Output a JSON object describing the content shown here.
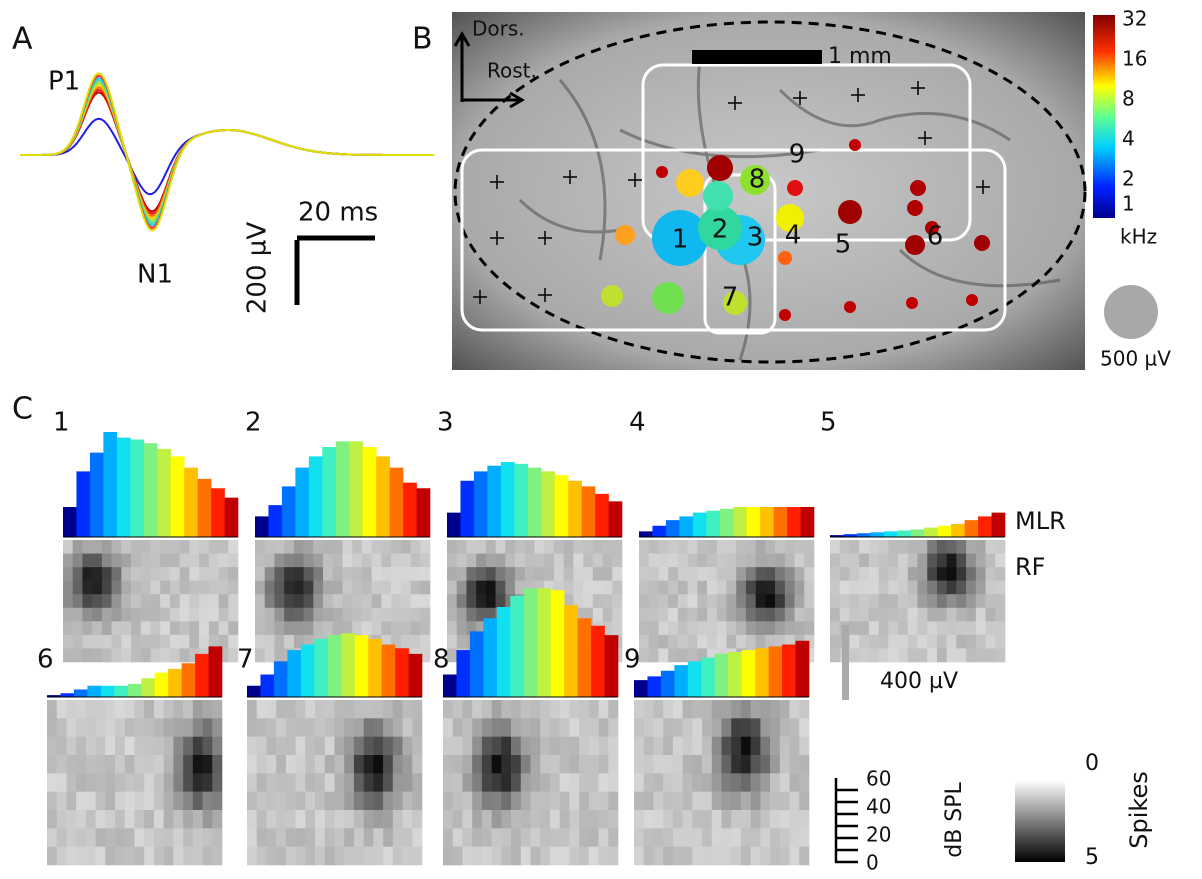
{
  "panel_a": {
    "label": "A",
    "peaks": [
      "P1",
      "N1"
    ],
    "time_scale": "20 ms",
    "voltage_scale": "200 µV"
  },
  "panel_b": {
    "label": "B",
    "orientation": [
      "Dors.",
      "Rost."
    ],
    "distance_scale": "1 mm",
    "colorbar_ticks": [
      "32",
      "16",
      "8",
      "4",
      "2",
      "1"
    ],
    "colorbar_unit": "kHz",
    "size_scale": "500 µV",
    "sites": [
      "1",
      "2",
      "3",
      "4",
      "5",
      "6",
      "7",
      "8",
      "9"
    ]
  },
  "panel_c": {
    "label": "C",
    "row_labels": [
      "MLR",
      "RF"
    ],
    "mlr_scale": "400 µV",
    "level_ticks": [
      "60",
      "40",
      "20",
      "0"
    ],
    "level_unit": "dB SPL",
    "spike_ticks": [
      "0",
      "5"
    ],
    "spike_unit": "Spikes",
    "panels": [
      {
        "name": "1",
        "mlr": [
          160,
          350,
          450,
          560,
          530,
          520,
          500,
          470,
          430,
          370,
          310,
          260,
          210
        ]
      },
      {
        "name": "2",
        "mlr": [
          110,
          170,
          270,
          370,
          430,
          480,
          510,
          510,
          480,
          430,
          370,
          290,
          260
        ]
      },
      {
        "name": "3",
        "mlr": [
          130,
          300,
          350,
          380,
          400,
          390,
          370,
          350,
          330,
          300,
          270,
          230,
          190
        ]
      },
      {
        "name": "4",
        "mlr": [
          30,
          60,
          90,
          110,
          130,
          140,
          150,
          160,
          160,
          160,
          160,
          160,
          160
        ]
      },
      {
        "name": "5",
        "mlr": [
          10,
          15,
          20,
          25,
          30,
          35,
          40,
          50,
          60,
          70,
          90,
          110,
          130
        ]
      },
      {
        "name": "6",
        "mlr": [
          10,
          20,
          40,
          60,
          60,
          60,
          70,
          100,
          130,
          150,
          180,
          230,
          270
        ]
      },
      {
        "name": "7",
        "mlr": [
          60,
          120,
          190,
          250,
          280,
          310,
          330,
          340,
          330,
          310,
          280,
          260,
          230
        ]
      },
      {
        "name": "8",
        "mlr": [
          120,
          250,
          350,
          420,
          480,
          540,
          580,
          580,
          570,
          490,
          420,
          380,
          330
        ]
      },
      {
        "name": "9",
        "mlr": [
          90,
          110,
          140,
          170,
          190,
          210,
          230,
          240,
          250,
          260,
          270,
          280,
          300
        ]
      }
    ]
  }
}
